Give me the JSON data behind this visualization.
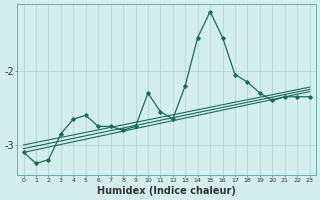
{
  "xlabel": "Humidex (Indice chaleur)",
  "bg_color": "#d4eeee",
  "grid_color": "#b0d0d0",
  "line_color": "#1a6b5a",
  "x_data": [
    0,
    1,
    2,
    3,
    4,
    5,
    6,
    7,
    8,
    9,
    10,
    11,
    12,
    13,
    14,
    15,
    16,
    17,
    18,
    19,
    20,
    21,
    22,
    23
  ],
  "y_main": [
    -3.1,
    -3.25,
    -3.2,
    -2.85,
    -2.65,
    -2.6,
    -2.75,
    -2.75,
    -2.8,
    -2.75,
    -2.3,
    -2.55,
    -2.65,
    -2.2,
    -1.55,
    -1.2,
    -1.55,
    -2.05,
    -2.15,
    -2.3,
    -2.4,
    -2.35,
    -2.35,
    -2.35
  ],
  "straight_x0": 0,
  "straight_x1": 23,
  "line1_y0": -3.05,
  "line1_y1": -2.25,
  "line2_y0": -3.1,
  "line2_y1": -2.28,
  "line3_y0": -3.0,
  "line3_y1": -2.22,
  "yticks": [
    -3,
    -2
  ],
  "ylim": [
    -3.4,
    -1.1
  ],
  "xlim": [
    -0.5,
    23.5
  ]
}
